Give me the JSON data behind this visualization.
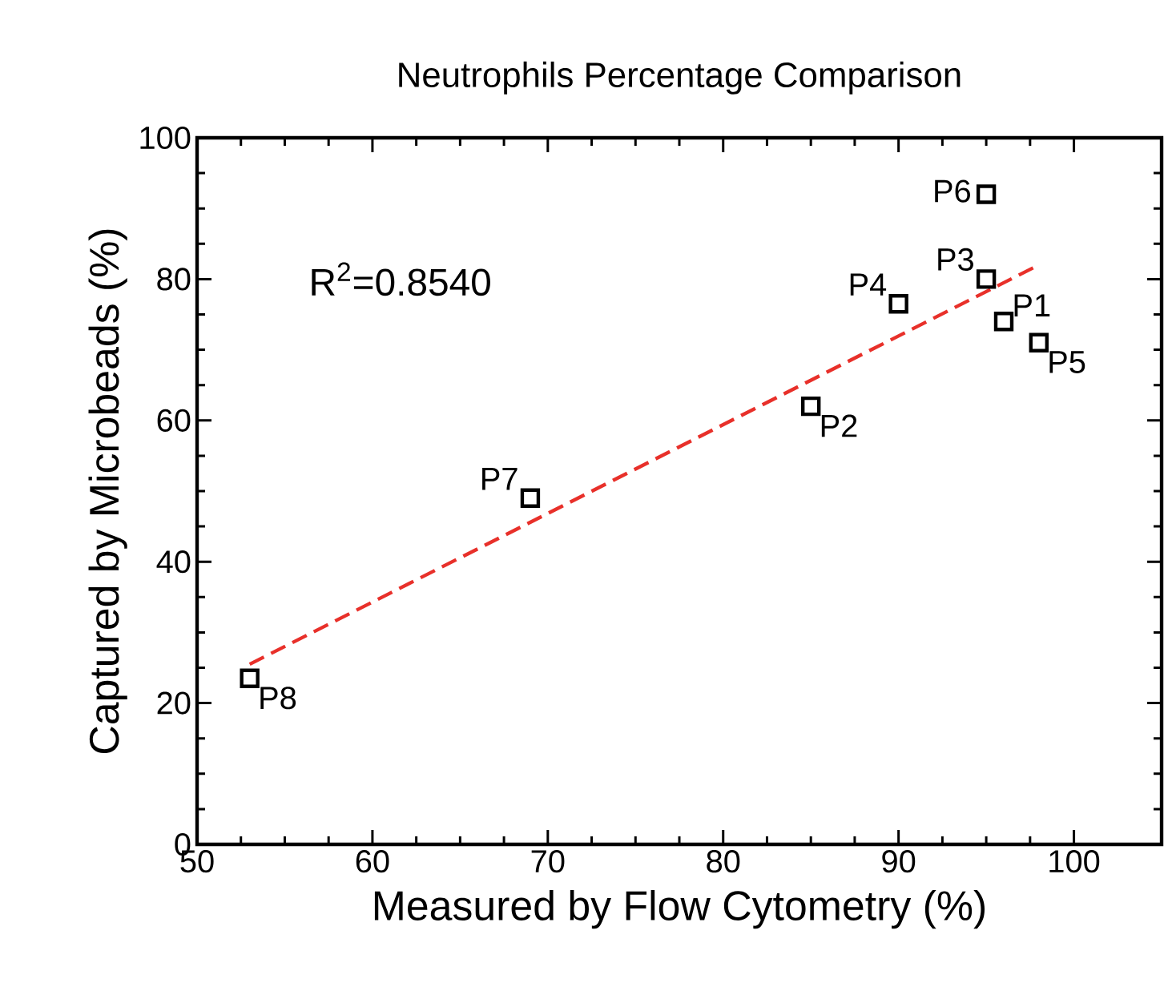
{
  "chart_data": {
    "type": "scatter",
    "title": "Neutrophils Percentage Comparison",
    "xlabel": "Measured by Flow Cytometry (%)",
    "ylabel": "Captured by Microbeads (%)",
    "xlim": [
      50,
      105
    ],
    "ylim": [
      0,
      100
    ],
    "xticks": [
      50,
      60,
      70,
      80,
      90,
      100
    ],
    "yticks": [
      0,
      20,
      40,
      60,
      80,
      100
    ],
    "grid": false,
    "series": [
      {
        "marker": "square",
        "color": "#000000",
        "x": [
          96,
          85,
          95,
          90,
          98,
          95,
          69,
          53
        ],
        "values": [
          74,
          62,
          80,
          76.5,
          71,
          92,
          49,
          23.5
        ]
      },
      {
        "type": "line",
        "color": "#e8302a",
        "line_style": "dashed",
        "x": [
          53,
          98
        ],
        "values": [
          25.5,
          82
        ]
      }
    ],
    "annotations": [
      "R$^{2}$=0.8540",
      {
        "text": "P1",
        "x": 96,
        "y": 74
      },
      {
        "text": "P2",
        "x": 85,
        "y": 62
      },
      {
        "text": "P3",
        "x": 95,
        "y": 80
      },
      {
        "text": "P4",
        "x": 90,
        "y": 76.5
      },
      {
        "text": "P5",
        "x": 98,
        "y": 71
      },
      {
        "text": "P6",
        "x": 95,
        "y": 92
      },
      {
        "text": "P7",
        "x": 69,
        "y": 49
      },
      {
        "text": "P8",
        "x": 53,
        "y": 23.5
      }
    ]
  }
}
